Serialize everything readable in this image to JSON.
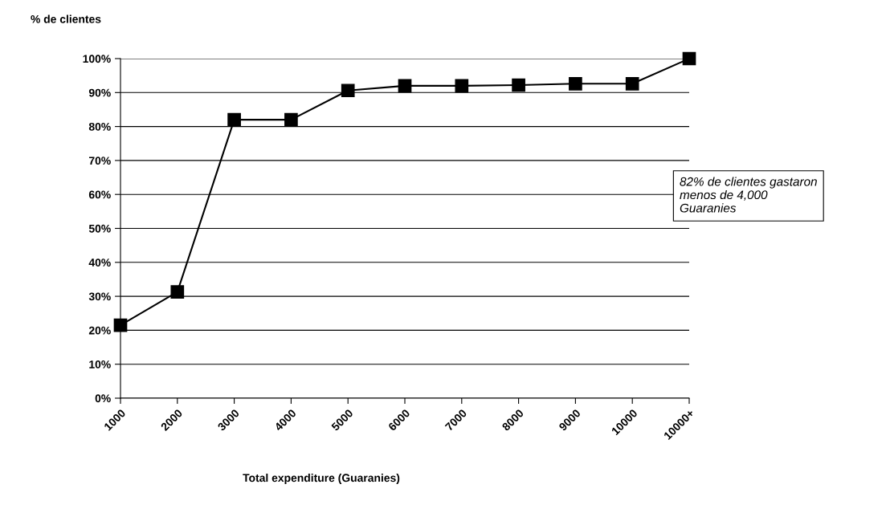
{
  "chart_data": {
    "type": "line",
    "xlabel": "Total expenditure (Guaranies)",
    "ylabel": "% de clientes",
    "categories": [
      "1000",
      "2000",
      "3000",
      "4000",
      "5000",
      "6000",
      "7000",
      "8000",
      "9000",
      "10000",
      "10000+"
    ],
    "series": [
      {
        "color": "#000000",
        "values": [
          21.5,
          31.3,
          82,
          82,
          90.6,
          92,
          92,
          92.2,
          92.6,
          92.6,
          100
        ]
      }
    ],
    "ylim": [
      0,
      100
    ],
    "yticks": [
      {
        "value": 0,
        "label": "0%"
      },
      {
        "value": 10,
        "label": "10%"
      },
      {
        "value": 20,
        "label": "20%"
      },
      {
        "value": 30,
        "label": "30%"
      },
      {
        "value": 40,
        "label": "40%"
      },
      {
        "value": 50,
        "label": "50%"
      },
      {
        "value": 60,
        "label": "60%"
      },
      {
        "value": 70,
        "label": "70%"
      },
      {
        "value": 80,
        "label": "80%"
      },
      {
        "value": 90,
        "label": "90%"
      },
      {
        "value": 100,
        "label": "100%"
      }
    ],
    "grid": "y",
    "marker": "square",
    "line_style": "solid",
    "legend": false,
    "annotations": [
      "82% de clientes gastaron\nmenos de 4,000\nGuaranies"
    ]
  }
}
